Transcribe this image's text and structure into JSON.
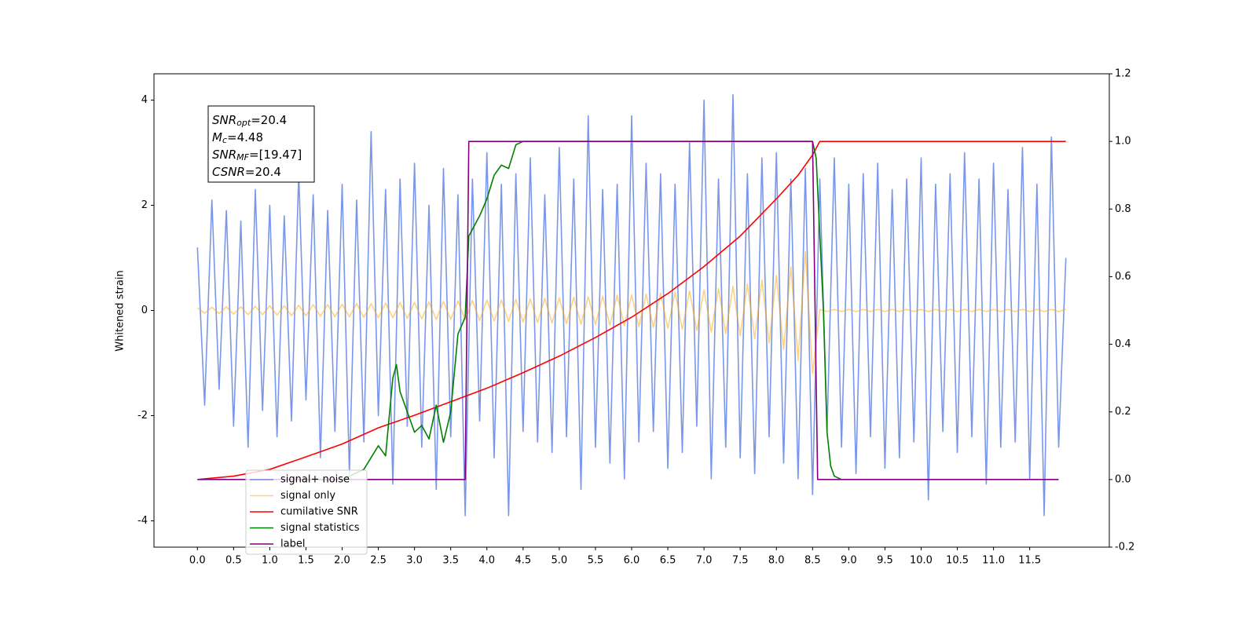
{
  "chart_data": {
    "type": "line",
    "y_label": "Whitened strain",
    "xlim": [
      -0.6,
      12.6
    ],
    "ylim": [
      -4.5,
      4.5
    ],
    "y2lim": [
      -0.2,
      1.2
    ],
    "xticks": [
      {
        "value": 0,
        "label": "0.0"
      },
      0.5,
      {
        "value": 1,
        "label": "1.0"
      },
      1.5,
      {
        "value": 2,
        "label": "2.0"
      },
      2.5,
      {
        "value": 3,
        "label": "3.0"
      },
      3.5,
      {
        "value": 4,
        "label": "4.0"
      },
      4.5,
      {
        "value": 5,
        "label": "5.0"
      },
      5.5,
      {
        "value": 6,
        "label": "6.0"
      },
      6.5,
      {
        "value": 7,
        "label": "7.0"
      },
      7.5,
      {
        "value": 8,
        "label": "8.0"
      },
      8.5,
      {
        "value": 9,
        "label": "9.0"
      },
      9.5,
      {
        "value": 10,
        "label": "10.0"
      },
      10.5,
      {
        "value": 11,
        "label": "11.0"
      },
      11.5
    ],
    "yticks": [
      -4,
      -2,
      0,
      2,
      4
    ],
    "y2ticks": [
      -0.2,
      {
        "value": 0,
        "label": "0.0"
      },
      0.2,
      0.4,
      0.6,
      0.8,
      {
        "value": 1,
        "label": "1.0"
      },
      1.2
    ],
    "legend": "lower left",
    "annotation": [
      {
        "name": "SNR",
        "sub": "opt",
        "text": "=20.4"
      },
      {
        "name": "M",
        "sub": "c",
        "text": "=4.48"
      },
      {
        "name": "SNR",
        "sub": "MF",
        "text": "=[19.47]"
      },
      {
        "name": "CSNR",
        "text": "=20.4"
      }
    ],
    "series": [
      {
        "name": "signal+ noise",
        "color": "royalblue",
        "alpha": 0.7,
        "x": [
          0,
          0.1,
          0.2,
          0.3,
          0.4,
          0.5,
          0.6,
          0.7,
          0.8,
          0.9,
          1,
          1.1,
          1.2,
          1.3,
          1.4,
          1.5,
          1.6,
          1.7,
          1.8,
          1.9,
          2,
          2.1,
          2.2,
          2.3,
          2.4,
          2.5,
          2.6,
          2.7,
          2.8,
          2.9,
          3,
          3.1,
          3.2,
          3.3,
          3.4,
          3.5,
          3.6,
          3.7,
          3.8,
          3.9,
          4,
          4.1,
          4.2,
          4.3,
          4.4,
          4.5,
          4.6,
          4.7,
          4.8,
          4.9,
          5,
          5.1,
          5.2,
          5.3,
          5.4,
          5.5,
          5.6,
          5.7,
          5.8,
          5.9,
          6,
          6.1,
          6.2,
          6.3,
          6.4,
          6.5,
          6.6,
          6.7,
          6.8,
          6.9,
          7,
          7.1,
          7.2,
          7.3,
          7.4,
          7.5,
          7.6,
          7.7,
          7.8,
          7.9,
          8,
          8.1,
          8.2,
          8.3,
          8.4,
          8.5,
          8.6,
          8.7,
          8.8,
          8.9,
          9,
          9.1,
          9.2,
          9.3,
          9.4,
          9.5,
          9.6,
          9.7,
          9.8,
          9.9,
          10,
          10.1,
          10.2,
          10.3,
          10.4,
          10.5,
          10.6,
          10.7,
          10.8,
          10.9,
          11,
          11.1,
          11.2,
          11.3,
          11.4,
          11.5,
          11.6,
          11.7,
          11.8,
          11.9,
          12
        ],
        "values": [
          1.2,
          -1.8,
          2.1,
          -1.5,
          1.9,
          -2.2,
          1.7,
          -2.6,
          2.3,
          -1.9,
          2.0,
          -2.4,
          1.8,
          -2.1,
          2.6,
          -1.7,
          2.2,
          -2.8,
          1.9,
          -2.3,
          2.4,
          -3.1,
          2.1,
          -2.5,
          3.4,
          -2.0,
          2.3,
          -3.3,
          2.5,
          -2.2,
          2.8,
          -2.6,
          2.0,
          -3.4,
          2.7,
          -2.4,
          2.2,
          -3.9,
          2.5,
          -2.1,
          3.0,
          -2.8,
          2.4,
          -3.9,
          2.6,
          -2.3,
          2.9,
          -2.5,
          2.2,
          -2.7,
          3.1,
          -2.4,
          2.5,
          -3.4,
          3.7,
          -2.6,
          2.3,
          -2.9,
          2.4,
          -3.2,
          3.7,
          -2.5,
          2.8,
          -2.3,
          2.6,
          -3.0,
          2.4,
          -2.7,
          3.2,
          -2.2,
          4.0,
          -3.2,
          2.5,
          -2.6,
          4.1,
          -2.8,
          2.6,
          -3.1,
          2.9,
          -2.4,
          3.0,
          -2.9,
          2.5,
          -3.2,
          2.7,
          -3.5,
          2.5,
          -2.3,
          2.9,
          -2.6,
          2.4,
          -3.1,
          2.6,
          -2.4,
          2.8,
          -3.0,
          2.3,
          -2.8,
          2.5,
          -2.5,
          2.9,
          -3.6,
          2.4,
          -2.3,
          2.6,
          -2.7,
          3.0,
          -2.4,
          2.5,
          -3.3,
          2.8,
          -2.6,
          2.3,
          -2.5,
          3.1,
          -3.2,
          2.4,
          -3.9,
          3.3,
          -2.6,
          1.0
        ]
      },
      {
        "name": "signal only",
        "color": "orange",
        "alpha": 0.5,
        "x": [
          0,
          0.1,
          0.2,
          0.3,
          0.4,
          0.5,
          0.6,
          0.7,
          0.8,
          0.9,
          1,
          1.1,
          1.2,
          1.3,
          1.4,
          1.5,
          1.6,
          1.7,
          1.8,
          1.9,
          2,
          2.1,
          2.2,
          2.3,
          2.4,
          2.5,
          2.6,
          2.7,
          2.8,
          2.9,
          3,
          3.1,
          3.2,
          3.3,
          3.4,
          3.5,
          3.6,
          3.7,
          3.8,
          3.9,
          4,
          4.1,
          4.2,
          4.3,
          4.4,
          4.5,
          4.6,
          4.7,
          4.8,
          4.9,
          5,
          5.1,
          5.2,
          5.3,
          5.4,
          5.5,
          5.6,
          5.7,
          5.8,
          5.9,
          6,
          6.1,
          6.2,
          6.3,
          6.4,
          6.5,
          6.6,
          6.7,
          6.8,
          6.9,
          7,
          7.1,
          7.2,
          7.3,
          7.4,
          7.5,
          7.6,
          7.7,
          7.8,
          7.9,
          8,
          8.1,
          8.2,
          8.3,
          8.4,
          8.5,
          8.6,
          8.7,
          8.8,
          8.9,
          9,
          9.1,
          9.2,
          9.3,
          9.4,
          9.5,
          9.6,
          9.7,
          9.8,
          9.9,
          10,
          10.1,
          10.2,
          10.3,
          10.4,
          10.5,
          10.6,
          10.7,
          10.8,
          10.9,
          11,
          11.1,
          11.2,
          11.3,
          11.4,
          11.5,
          11.6,
          11.7,
          11.8,
          11.9,
          12
        ],
        "values": [
          0.05,
          -0.05,
          0.06,
          -0.06,
          0.07,
          -0.07,
          0.07,
          -0.08,
          0.08,
          -0.08,
          0.09,
          -0.09,
          0.09,
          -0.1,
          0.1,
          -0.1,
          0.11,
          -0.11,
          0.11,
          -0.12,
          0.12,
          -0.12,
          0.13,
          -0.13,
          0.13,
          -0.14,
          0.14,
          -0.14,
          0.15,
          -0.15,
          0.15,
          -0.16,
          0.16,
          -0.17,
          0.17,
          -0.17,
          0.18,
          -0.18,
          0.19,
          -0.19,
          0.2,
          -0.2,
          0.2,
          -0.21,
          0.21,
          -0.22,
          0.22,
          -0.23,
          0.23,
          -0.24,
          0.24,
          -0.25,
          0.25,
          -0.26,
          0.26,
          -0.27,
          0.27,
          -0.28,
          0.29,
          -0.29,
          0.3,
          -0.31,
          0.31,
          -0.32,
          0.33,
          -0.34,
          0.35,
          -0.36,
          0.37,
          -0.38,
          0.39,
          -0.41,
          0.42,
          -0.44,
          0.46,
          -0.48,
          0.51,
          -0.54,
          0.58,
          -0.62,
          0.67,
          -0.74,
          0.83,
          -0.95,
          1.12,
          -1.2,
          0.02,
          -0.02,
          0.02,
          -0.02,
          0.02,
          -0.02,
          0.02,
          -0.02,
          0.02,
          -0.02,
          0.02,
          -0.02,
          0.02,
          -0.02,
          0.02,
          -0.02,
          0.02,
          -0.02,
          0.02,
          -0.02,
          0.02,
          -0.02,
          0.02,
          -0.02,
          0.02,
          -0.02,
          0.02,
          -0.02,
          0.02,
          -0.02,
          0.02,
          -0.02,
          0.02,
          -0.02,
          0.02
        ]
      },
      {
        "name": "cumilative SNR",
        "color": "red",
        "axis": "y2",
        "x": [
          0,
          0.5,
          1,
          1.5,
          2,
          2.5,
          3,
          3.5,
          4,
          4.5,
          5,
          5.5,
          6,
          6.5,
          7,
          7.5,
          8,
          8.3,
          8.5,
          8.6,
          12
        ],
        "values": [
          0,
          0.01,
          0.03,
          0.067,
          0.105,
          0.153,
          0.19,
          0.23,
          0.27,
          0.316,
          0.365,
          0.42,
          0.48,
          0.55,
          0.63,
          0.72,
          0.83,
          0.9,
          0.96,
          1.0,
          1.0
        ]
      },
      {
        "name": "signal statistics",
        "color": "green",
        "axis": "y2",
        "x": [
          2.0,
          2.3,
          2.5,
          2.6,
          2.7,
          2.75,
          2.8,
          2.9,
          3.0,
          3.1,
          3.2,
          3.3,
          3.4,
          3.5,
          3.6,
          3.7,
          3.75,
          3.9,
          4.0,
          4.1,
          4.2,
          4.3,
          4.4,
          4.5,
          5.0,
          5.5,
          6.0,
          7.0,
          8.0,
          8.5,
          8.55,
          8.65,
          8.7,
          8.75,
          8.8,
          8.9
        ],
        "values": [
          0,
          0.03,
          0.1,
          0.07,
          0.3,
          0.34,
          0.26,
          0.2,
          0.14,
          0.16,
          0.12,
          0.22,
          0.11,
          0.2,
          0.43,
          0.48,
          0.72,
          0.78,
          0.83,
          0.9,
          0.93,
          0.92,
          0.99,
          1.0,
          1.0,
          1.0,
          1.0,
          1.0,
          1.0,
          1.0,
          0.95,
          0.5,
          0.14,
          0.04,
          0.01,
          0
        ]
      },
      {
        "name": "label",
        "color": "purple",
        "axis": "y2",
        "x": [
          0,
          3.7,
          3.75,
          8.5,
          8.57,
          11.9
        ],
        "values": [
          0,
          0,
          1,
          1,
          0,
          0
        ]
      }
    ]
  }
}
